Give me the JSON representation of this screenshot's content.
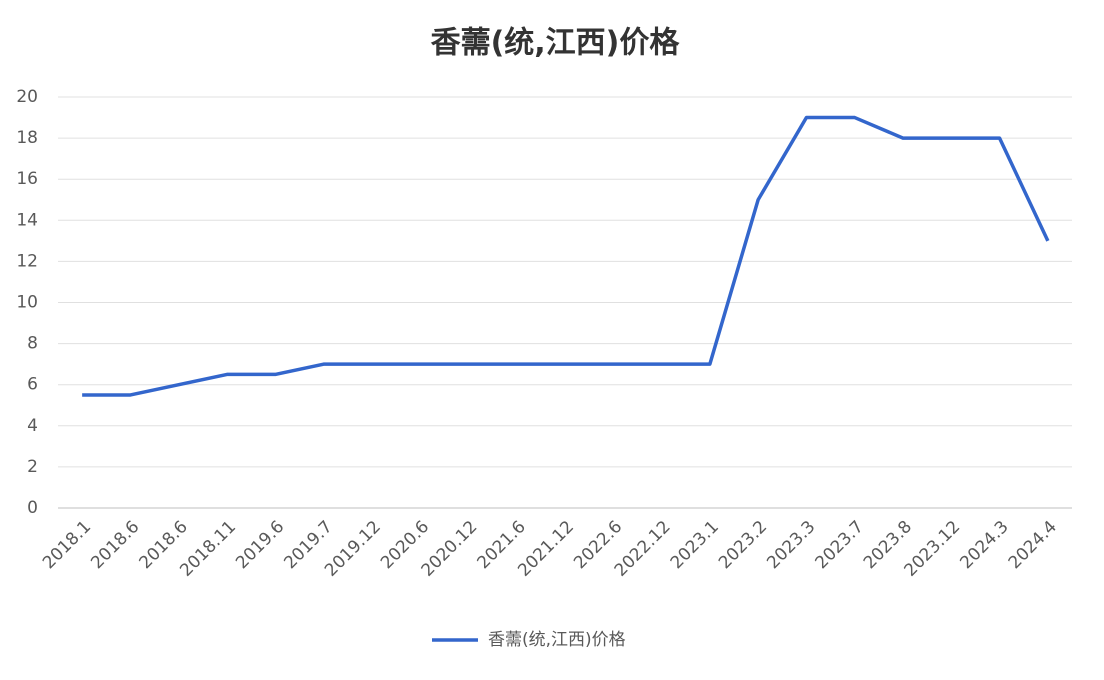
{
  "chart_data": {
    "type": "line",
    "title": "香薷(统,江西)价格",
    "categories": [
      "2018.1",
      "2018.6",
      "2018.6",
      "2018.11",
      "2019.6",
      "2019.7",
      "2019.12",
      "2020.6",
      "2020.12",
      "2021.6",
      "2021.12",
      "2022.6",
      "2022.12",
      "2023.1",
      "2023.2",
      "2023.3",
      "2023.7",
      "2023.8",
      "2023.12",
      "2024.3",
      "2024.4"
    ],
    "series": [
      {
        "name": "香薷(统,江西)价格",
        "color": "#3366cc",
        "values": [
          5.5,
          5.5,
          6,
          6.5,
          6.5,
          7,
          7,
          7,
          7,
          7,
          7,
          7,
          7,
          7,
          15,
          19,
          19,
          18,
          18,
          18,
          13
        ]
      }
    ],
    "ylim": [
      0,
      20
    ],
    "yticks": [
      0,
      2,
      4,
      6,
      8,
      10,
      12,
      14,
      16,
      18,
      20
    ],
    "grid": true,
    "legend": "bottom"
  }
}
